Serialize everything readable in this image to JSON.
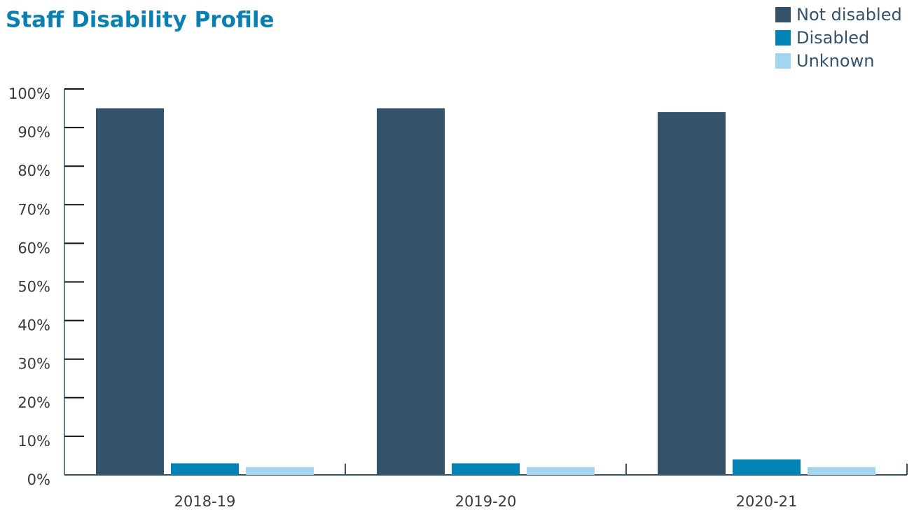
{
  "chart_data": {
    "type": "bar",
    "title": "Staff Disability Profile",
    "categories": [
      "2018-19",
      "2019-20",
      "2020-21"
    ],
    "series": [
      {
        "name": "Not disabled",
        "color": "#34536b",
        "values": [
          95,
          95,
          94
        ]
      },
      {
        "name": "Disabled",
        "color": "#0382b5",
        "values": [
          3,
          3,
          4
        ]
      },
      {
        "name": "Unknown",
        "color": "#a3d4f0",
        "values": [
          2,
          2,
          2
        ]
      }
    ],
    "ylim": [
      0,
      100
    ],
    "yticks": [
      {
        "value": 0,
        "label": "0%"
      },
      {
        "value": 10,
        "label": "10%"
      },
      {
        "value": 20,
        "label": "20%"
      },
      {
        "value": 30,
        "label": "30%"
      },
      {
        "value": 40,
        "label": "40%"
      },
      {
        "value": 50,
        "label": "50%"
      },
      {
        "value": 60,
        "label": "60%"
      },
      {
        "value": 70,
        "label": "70%"
      },
      {
        "value": 80,
        "label": "80%"
      },
      {
        "value": 90,
        "label": "90%"
      },
      {
        "value": 100,
        "label": "100%"
      }
    ],
    "legend": "top-right"
  }
}
